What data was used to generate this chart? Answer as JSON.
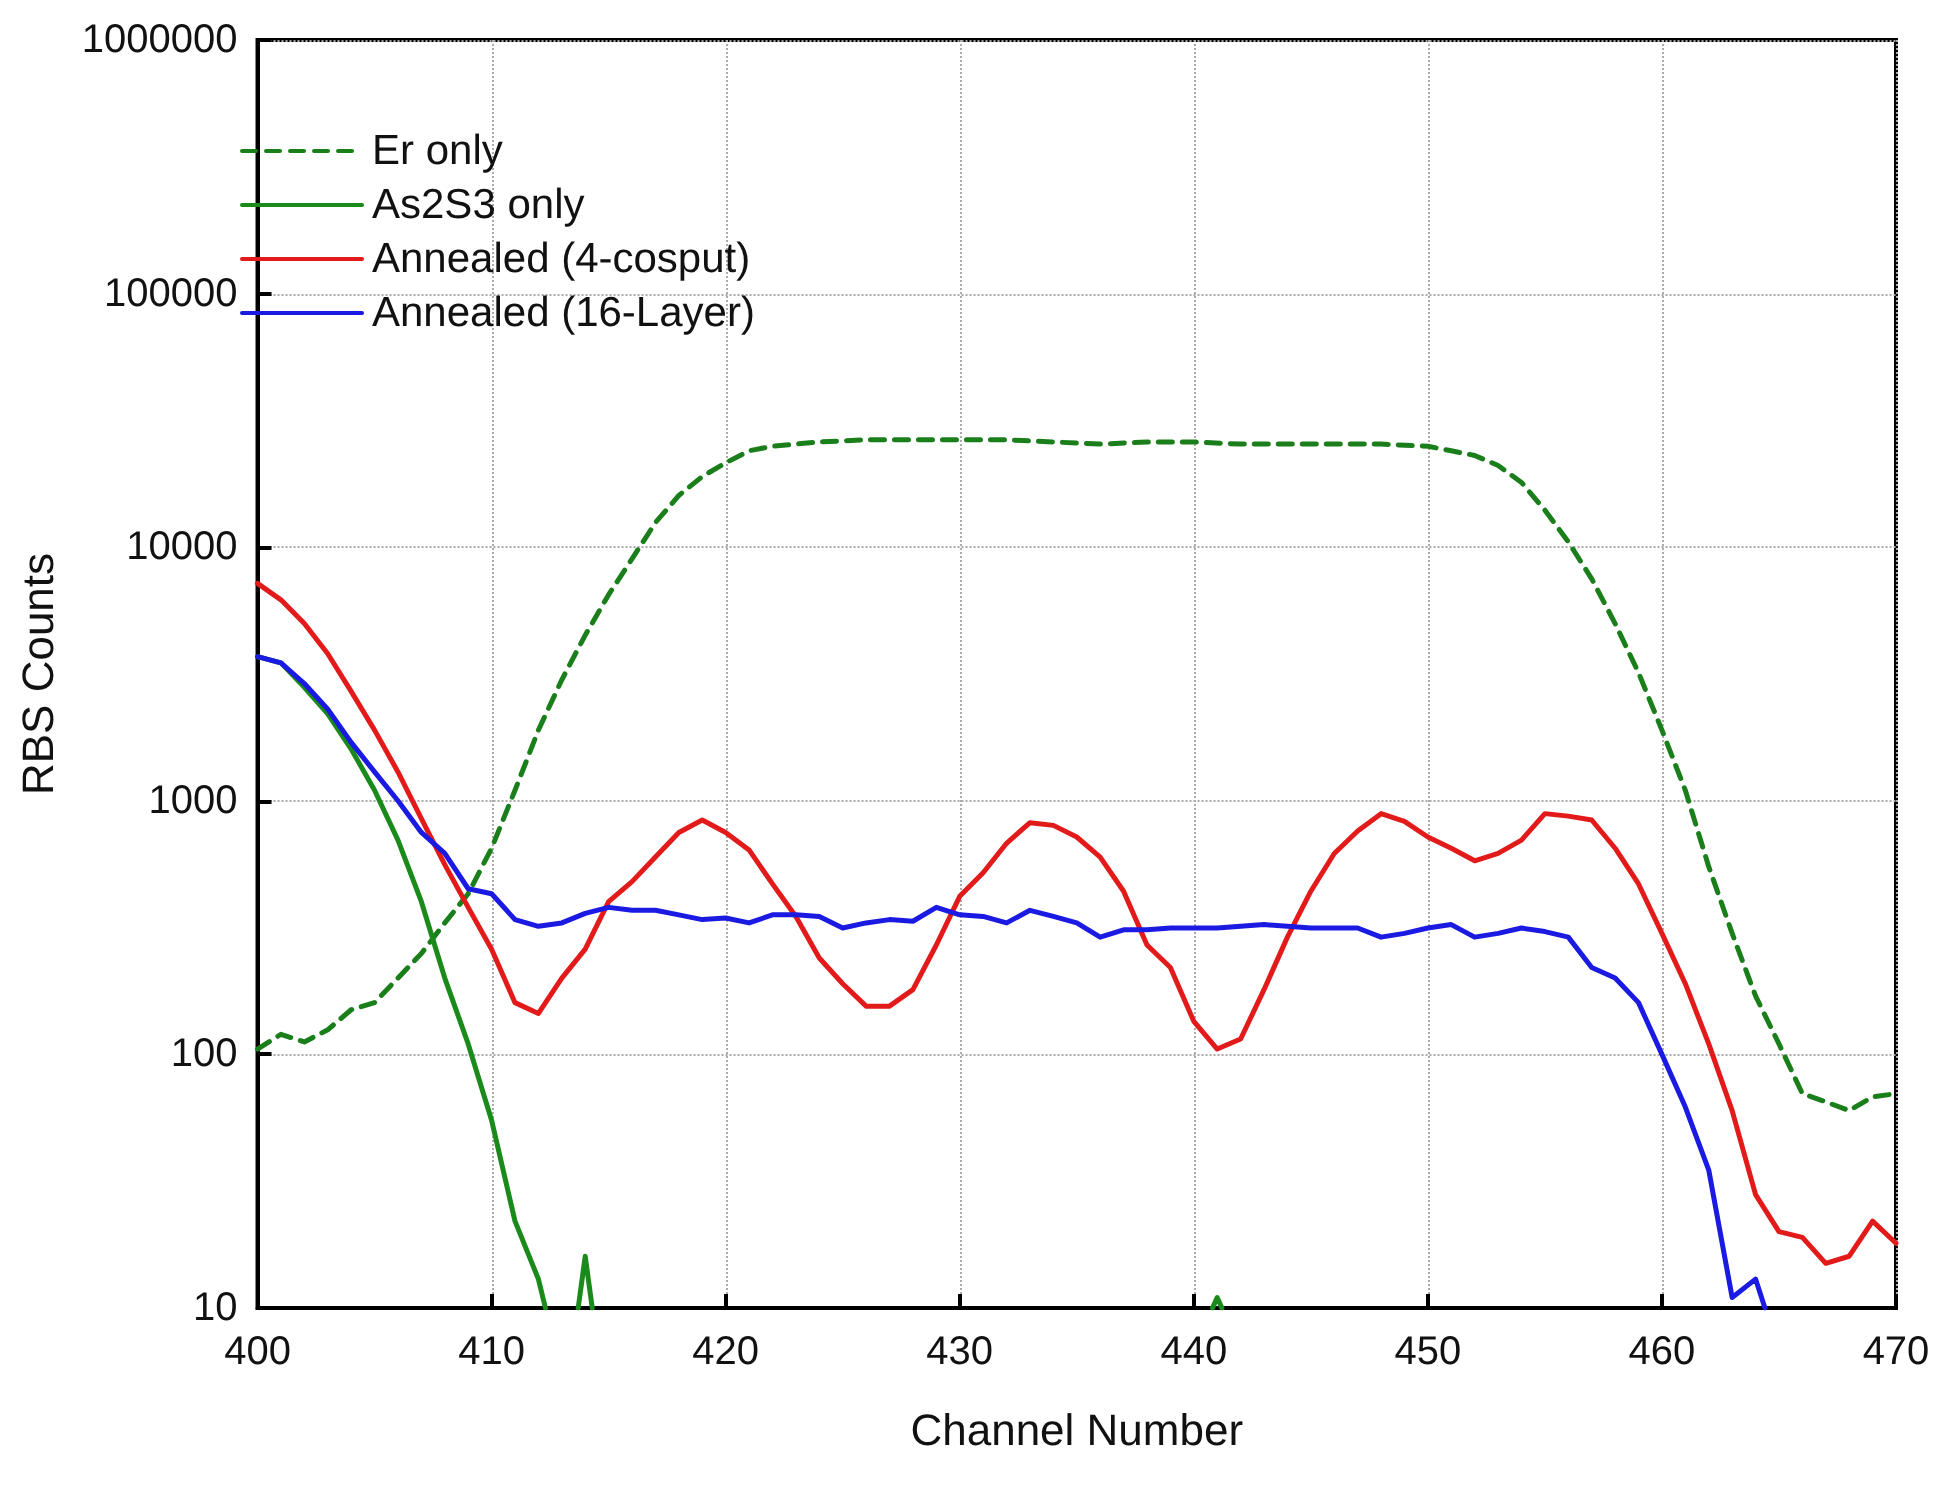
{
  "chart_data": {
    "type": "line",
    "xlabel": "Channel Number",
    "ylabel": "RBS Counts",
    "log": "y",
    "grid": true,
    "legend": "top left",
    "marker": "none",
    "xlim": [
      400,
      470
    ],
    "xticks": [
      400,
      410,
      420,
      430,
      440,
      450,
      460,
      470
    ],
    "ylim": [
      10,
      1000000
    ],
    "yticks": [
      10,
      100,
      1000,
      10000,
      100000,
      1000000
    ],
    "series": [
      {
        "name": "Er only",
        "color": "#1a7f1a",
        "line_style": "dashed",
        "x": [
          400,
          401,
          402,
          403,
          404,
          405,
          406,
          407,
          408,
          409,
          410,
          411,
          412,
          413,
          414,
          415,
          416,
          417,
          418,
          419,
          420,
          421,
          422,
          423,
          424,
          426,
          428,
          430,
          432,
          434,
          436,
          438,
          440,
          442,
          444,
          446,
          448,
          450,
          451,
          452,
          453,
          454,
          455,
          456,
          457,
          458,
          459,
          460,
          461,
          462,
          463,
          464,
          465,
          466,
          467,
          468,
          469,
          470
        ],
        "values": [
          105,
          120,
          112,
          125,
          150,
          160,
          200,
          250,
          330,
          430,
          650,
          1100,
          1900,
          3000,
          4500,
          6500,
          9000,
          12500,
          16000,
          19000,
          21500,
          24000,
          25000,
          25500,
          26000,
          26500,
          26500,
          26500,
          26500,
          26000,
          25500,
          26000,
          26000,
          25500,
          25500,
          25500,
          25500,
          25000,
          24000,
          23000,
          21000,
          18000,
          14000,
          10500,
          7500,
          5000,
          3200,
          1900,
          1100,
          550,
          300,
          170,
          110,
          70,
          65,
          60,
          68,
          70
        ]
      },
      {
        "name": "As2S3 only",
        "color": "#1a8a1a",
        "line_style": "solid",
        "x": [
          400,
          401,
          402,
          403,
          404,
          405,
          406,
          407,
          408,
          409,
          410,
          411,
          412,
          412.3,
          413,
          413.7,
          414,
          414.3,
          415,
          440.8,
          441,
          441.2
        ],
        "values": [
          3700,
          3500,
          2800,
          2200,
          1600,
          1100,
          700,
          400,
          200,
          110,
          55,
          22,
          13,
          10,
          null,
          10,
          16,
          10,
          null,
          10,
          11,
          10
        ]
      },
      {
        "name": "Annealed (4-cosput)",
        "color": "#e31a1a",
        "line_style": "solid",
        "x": [
          400,
          401,
          402,
          403,
          404,
          405,
          406,
          407,
          408,
          409,
          410,
          411,
          412,
          413,
          414,
          415,
          416,
          417,
          418,
          419,
          420,
          421,
          422,
          423,
          424,
          425,
          426,
          427,
          428,
          429,
          430,
          431,
          432,
          433,
          434,
          435,
          436,
          437,
          438,
          439,
          440,
          441,
          442,
          443,
          444,
          445,
          446,
          447,
          448,
          449,
          450,
          451,
          452,
          453,
          454,
          455,
          456,
          457,
          458,
          459,
          460,
          461,
          462,
          463,
          464,
          465,
          466,
          467,
          468,
          469,
          470
        ],
        "values": [
          7200,
          6200,
          5000,
          3800,
          2700,
          1900,
          1300,
          850,
          560,
          380,
          260,
          160,
          145,
          200,
          260,
          400,
          480,
          600,
          750,
          840,
          750,
          640,
          470,
          350,
          240,
          190,
          155,
          155,
          180,
          270,
          420,
          520,
          680,
          820,
          800,
          720,
          600,
          440,
          270,
          220,
          135,
          105,
          115,
          180,
          290,
          440,
          620,
          760,
          890,
          830,
          720,
          650,
          580,
          620,
          700,
          890,
          870,
          840,
          650,
          470,
          300,
          190,
          110,
          60,
          28,
          20,
          19,
          15,
          16,
          22,
          18
        ]
      },
      {
        "name": "Annealed (16-Layer)",
        "color": "#1a1ae3",
        "line_style": "solid",
        "x": [
          400,
          401,
          402,
          403,
          404,
          405,
          406,
          407,
          408,
          409,
          410,
          411,
          412,
          413,
          414,
          415,
          416,
          417,
          418,
          419,
          420,
          421,
          422,
          423,
          424,
          425,
          426,
          427,
          428,
          429,
          430,
          431,
          432,
          433,
          434,
          435,
          436,
          437,
          438,
          439,
          440,
          441,
          442,
          443,
          444,
          445,
          446,
          447,
          448,
          449,
          450,
          451,
          452,
          453,
          454,
          455,
          456,
          457,
          458,
          459,
          460,
          461,
          462,
          463,
          464,
          464.4
        ],
        "values": [
          3700,
          3500,
          2900,
          2300,
          1700,
          1300,
          1000,
          750,
          620,
          450,
          430,
          340,
          320,
          330,
          360,
          380,
          370,
          370,
          355,
          340,
          345,
          330,
          355,
          355,
          350,
          315,
          330,
          340,
          335,
          380,
          355,
          350,
          330,
          370,
          350,
          330,
          290,
          310,
          310,
          315,
          315,
          315,
          320,
          325,
          320,
          315,
          315,
          315,
          290,
          300,
          315,
          325,
          290,
          300,
          315,
          305,
          290,
          220,
          200,
          160,
          100,
          62,
          35,
          11,
          13,
          10
        ]
      }
    ]
  }
}
